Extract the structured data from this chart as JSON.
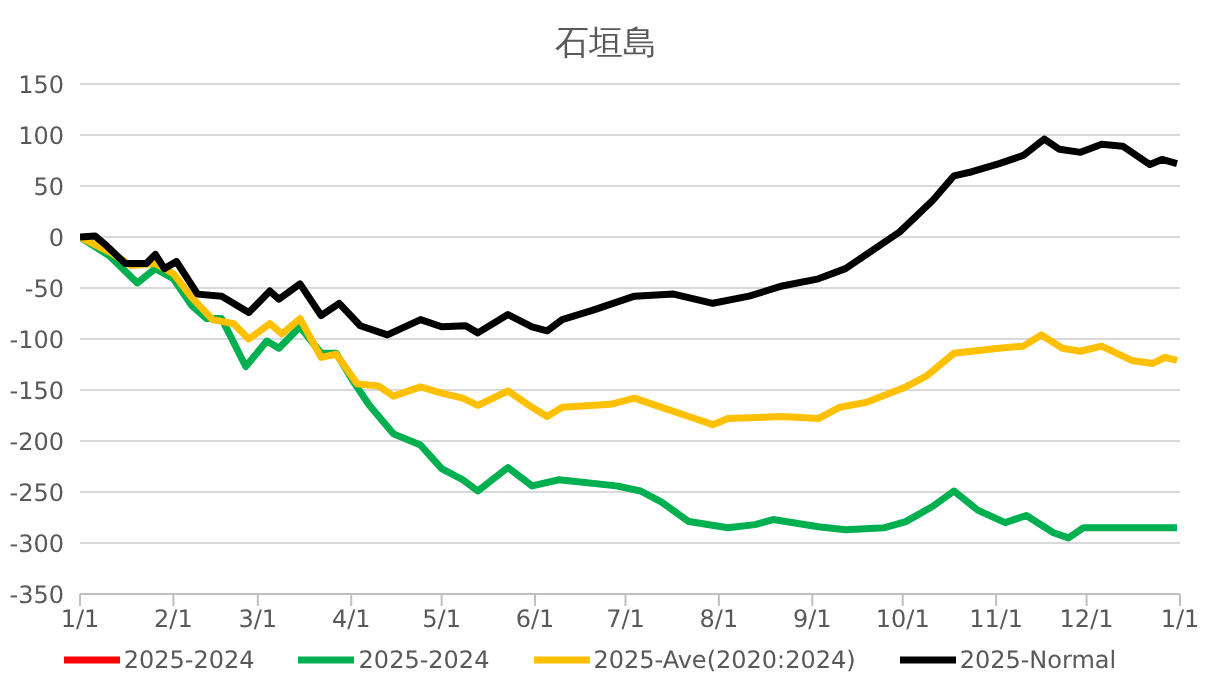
{
  "chart_data": {
    "type": "line",
    "title": "石垣島",
    "xlim": [
      "2025-01-01",
      "2026-01-01"
    ],
    "xticks": [
      {
        "value": "2025-01-01",
        "label": "1/1"
      },
      {
        "value": "2025-02-01",
        "label": "2/1"
      },
      {
        "value": "2025-03-01",
        "label": "3/1"
      },
      {
        "value": "2025-04-01",
        "label": "4/1"
      },
      {
        "value": "2025-05-01",
        "label": "5/1"
      },
      {
        "value": "2025-06-01",
        "label": "6/1"
      },
      {
        "value": "2025-07-01",
        "label": "7/1"
      },
      {
        "value": "2025-08-01",
        "label": "8/1"
      },
      {
        "value": "2025-09-01",
        "label": "9/1"
      },
      {
        "value": "2025-10-01",
        "label": "10/1"
      },
      {
        "value": "2025-11-01",
        "label": "11/1"
      },
      {
        "value": "2025-12-01",
        "label": "12/1"
      },
      {
        "value": "2026-01-01",
        "label": "1/1"
      }
    ],
    "ylim": [
      -350,
      150
    ],
    "yticks": [
      -350,
      -300,
      -250,
      -200,
      -150,
      -100,
      -50,
      0,
      50,
      100,
      150
    ],
    "grid": "y",
    "legend": "bottom",
    "marker": "none",
    "line_style": "solid",
    "series": [
      {
        "name": "2025-2024",
        "color": "#ff0000"
      },
      {
        "name": "2025-2024",
        "color": "#00b050",
        "x": [
          "2025-01-01",
          "2025-01-11",
          "2025-01-20",
          "2025-01-26",
          "2025-02-01",
          "2025-02-07",
          "2025-02-12",
          "2025-02-17",
          "2025-02-25",
          "2025-03-04",
          "2025-03-08",
          "2025-03-15",
          "2025-03-22",
          "2025-03-27",
          "2025-04-02",
          "2025-04-07",
          "2025-04-15",
          "2025-04-24",
          "2025-05-01",
          "2025-05-08",
          "2025-05-13",
          "2025-05-23",
          "2025-05-31",
          "2025-06-09",
          "2025-06-28",
          "2025-07-06",
          "2025-07-13",
          "2025-07-22",
          "2025-08-04",
          "2025-08-13",
          "2025-08-19",
          "2025-09-03",
          "2025-09-12",
          "2025-09-25",
          "2025-10-02",
          "2025-10-11",
          "2025-10-18",
          "2025-10-26",
          "2025-11-04",
          "2025-11-11",
          "2025-11-20",
          "2025-11-25",
          "2025-11-30",
          "2025-12-31"
        ],
        "values": [
          0,
          -19,
          -45,
          -31,
          -41,
          -67,
          -80,
          -80,
          -127,
          -102,
          -109,
          -88,
          -114,
          -114,
          -143,
          -165,
          -193,
          -204,
          -227,
          -238,
          -249,
          -226,
          -244,
          -238,
          -244,
          -249,
          -260,
          -279,
          -285,
          -282,
          -277,
          -284,
          -287,
          -285,
          -279,
          -264,
          -249,
          -268,
          -280,
          -273,
          -290,
          -295,
          -285,
          -285
        ]
      },
      {
        "name": "2025-Ave(2020:2024)",
        "color": "#ffc000",
        "x": [
          "2025-01-01",
          "2025-01-11",
          "2025-01-18",
          "2025-01-26",
          "2025-02-01",
          "2025-02-07",
          "2025-02-14",
          "2025-02-21",
          "2025-02-26",
          "2025-03-05",
          "2025-03-09",
          "2025-03-15",
          "2025-03-22",
          "2025-03-27",
          "2025-04-03",
          "2025-04-10",
          "2025-04-15",
          "2025-04-24",
          "2025-05-01",
          "2025-05-08",
          "2025-05-13",
          "2025-05-23",
          "2025-05-31",
          "2025-06-05",
          "2025-06-10",
          "2025-06-26",
          "2025-07-04",
          "2025-07-13",
          "2025-07-22",
          "2025-07-30",
          "2025-08-04",
          "2025-08-22",
          "2025-09-03",
          "2025-09-10",
          "2025-09-19",
          "2025-10-02",
          "2025-10-09",
          "2025-10-18",
          "2025-10-24",
          "2025-11-02",
          "2025-11-10",
          "2025-11-16",
          "2025-11-23",
          "2025-11-29",
          "2025-12-06",
          "2025-12-16",
          "2025-12-23",
          "2025-12-27",
          "2025-12-31"
        ],
        "values": [
          0,
          -15,
          -28,
          -26,
          -36,
          -59,
          -81,
          -85,
          -100,
          -85,
          -95,
          -80,
          -118,
          -115,
          -144,
          -146,
          -156,
          -147,
          -153,
          -158,
          -165,
          -151,
          -167,
          -176,
          -167,
          -164,
          -158,
          -167,
          -176,
          -184,
          -178,
          -176,
          -178,
          -167,
          -162,
          -147,
          -136,
          -114,
          -112,
          -109,
          -107,
          -96,
          -109,
          -112,
          -107,
          -121,
          -124,
          -118,
          -121
        ]
      },
      {
        "name": "2025-Normal",
        "color": "#000000",
        "x": [
          "2025-01-01",
          "2025-01-06",
          "2025-01-10",
          "2025-01-16",
          "2025-01-23",
          "2025-01-26",
          "2025-01-29",
          "2025-02-02",
          "2025-02-09",
          "2025-02-17",
          "2025-02-26",
          "2025-03-05",
          "2025-03-08",
          "2025-03-15",
          "2025-03-22",
          "2025-03-28",
          "2025-04-04",
          "2025-04-13",
          "2025-04-24",
          "2025-05-01",
          "2025-05-09",
          "2025-05-13",
          "2025-05-23",
          "2025-05-31",
          "2025-06-05",
          "2025-06-10",
          "2025-06-20",
          "2025-07-04",
          "2025-07-17",
          "2025-07-30",
          "2025-08-11",
          "2025-08-22",
          "2025-09-03",
          "2025-09-12",
          "2025-09-30",
          "2025-10-11",
          "2025-10-18",
          "2025-10-24",
          "2025-11-02",
          "2025-11-10",
          "2025-11-17",
          "2025-11-22",
          "2025-11-29",
          "2025-12-06",
          "2025-12-13",
          "2025-12-22",
          "2025-12-26",
          "2025-12-31"
        ],
        "values": [
          0,
          1,
          -9,
          -26,
          -26,
          -17,
          -31,
          -24,
          -56,
          -58,
          -74,
          -53,
          -61,
          -46,
          -77,
          -65,
          -87,
          -96,
          -81,
          -88,
          -87,
          -94,
          -76,
          -88,
          -92,
          -81,
          -72,
          -58,
          -56,
          -65,
          -58,
          -48,
          -41,
          -31,
          5,
          36,
          60,
          64,
          72,
          80,
          96,
          86,
          83,
          91,
          89,
          71,
          76,
          72
        ]
      }
    ]
  }
}
